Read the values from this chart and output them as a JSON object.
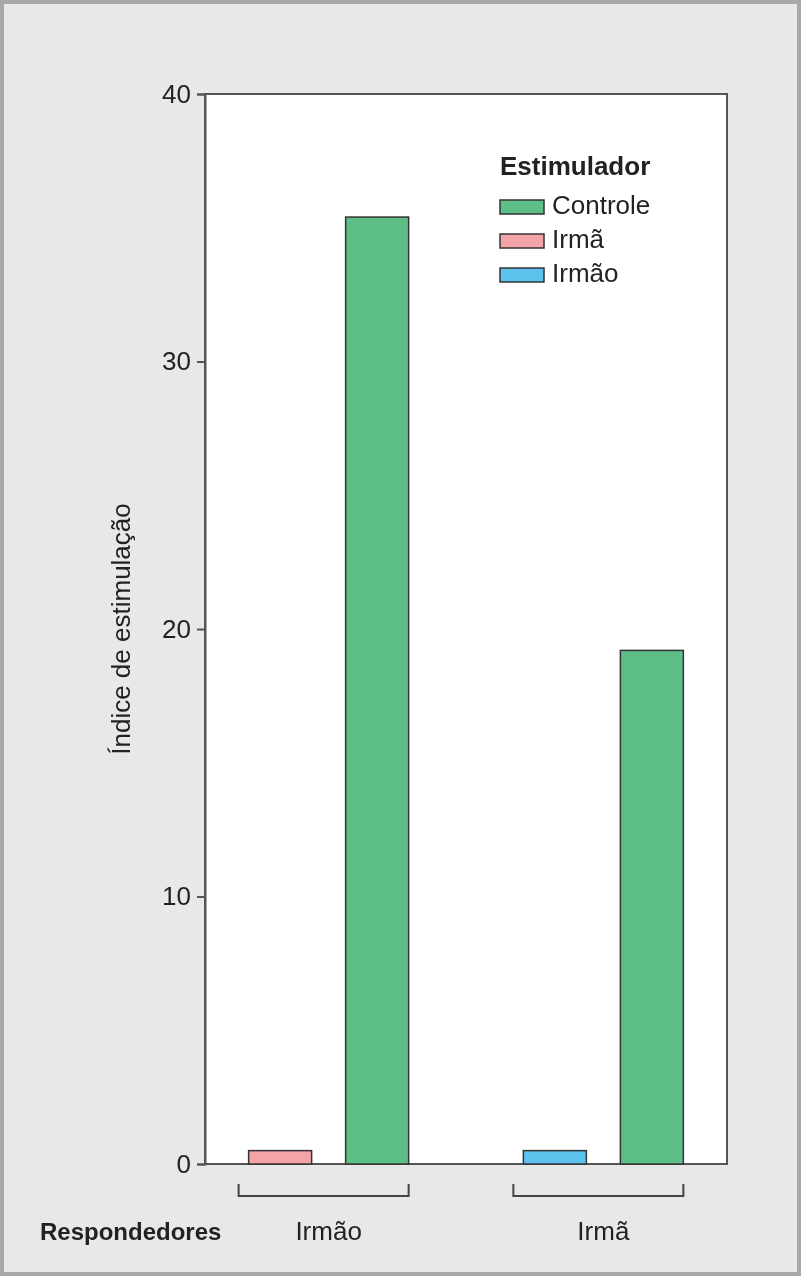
{
  "chart_data": {
    "type": "bar",
    "xlabel": "Respondedores",
    "ylabel": "Índice de estimulação",
    "legend_title": "Estimulador",
    "categories": [
      "Irmão",
      "Irmã"
    ],
    "series": [
      {
        "name": "Controle",
        "color": "#5dbf87",
        "values": [
          35.4,
          19.2
        ]
      },
      {
        "name": "Irmã",
        "color": "#f4a4a8",
        "values": [
          0.5,
          null
        ]
      },
      {
        "name": "Irmão",
        "color": "#5bc3ee",
        "values": [
          null,
          0.5
        ]
      }
    ],
    "ylim": [
      0,
      40
    ],
    "yticks": [
      0,
      10,
      20,
      30,
      40
    ],
    "legend": "top right"
  }
}
